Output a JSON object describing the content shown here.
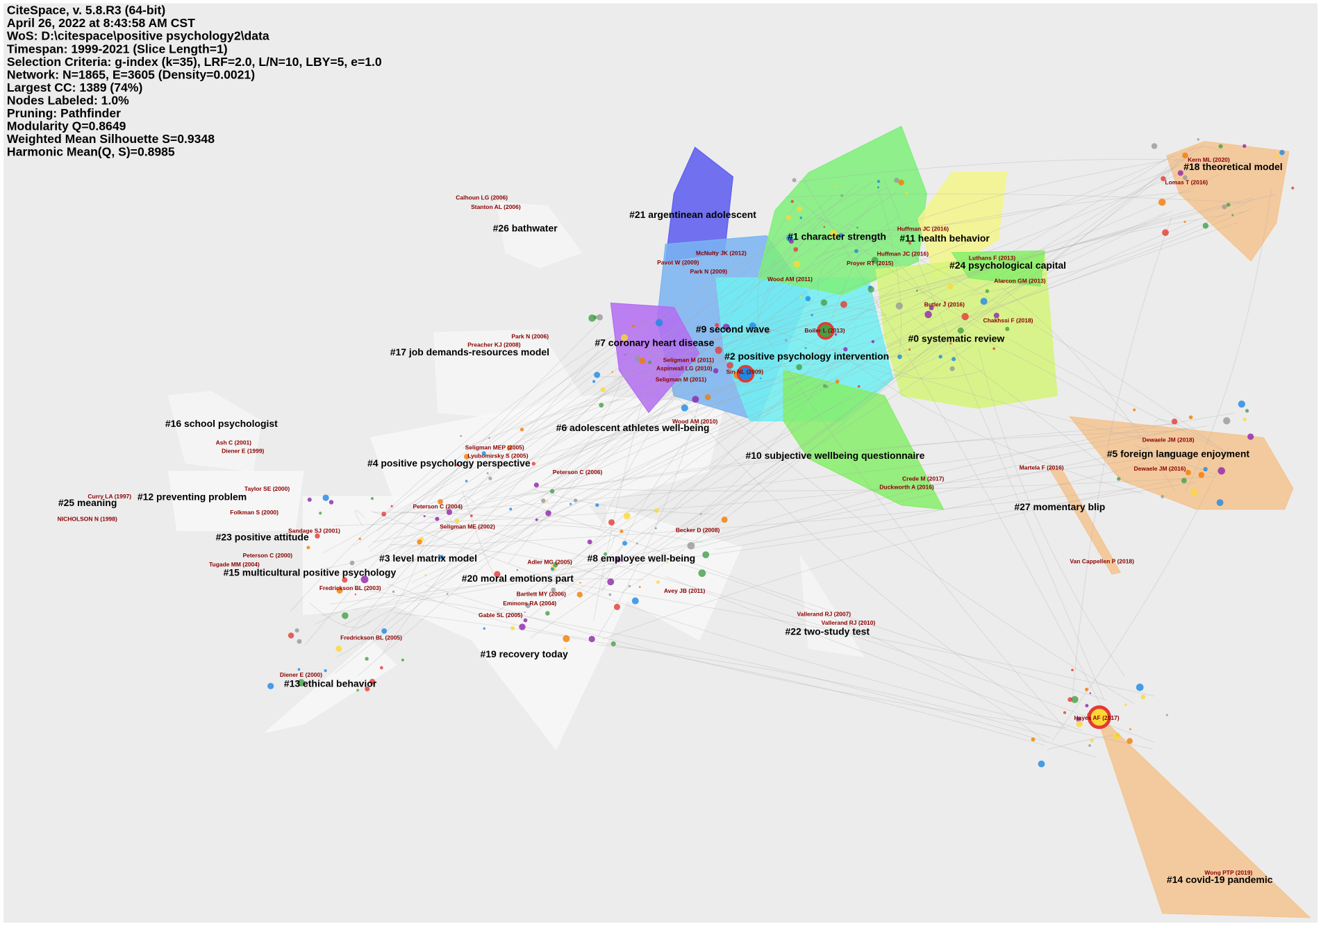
{
  "header": {
    "lines": [
      "CiteSpace, v. 5.8.R3 (64-bit)",
      "April 26, 2022 at 8:43:58 AM CST",
      "WoS: D:\\citespace\\positive psychology2\\data",
      "Timespan: 1999-2021 (Slice Length=1)",
      "Selection Criteria: g-index (k=35), LRF=2.0, L/N=10, LBY=5, e=1.0",
      "Network: N=1865, E=3605 (Density=0.0021)",
      "Largest CC: 1389 (74%)",
      "Nodes Labeled: 1.0%",
      "Pruning: Pathfinder",
      "Modularity Q=0.8649",
      "Weighted Mean Silhouette S=0.9348",
      "Harmonic Mean(Q, S)=0.8985"
    ]
  },
  "clusters": [
    "#0 systematic review",
    "#1 character strength",
    "#2 positive psychology intervention",
    "#3 level matrix model",
    "#4 positive psychology perspective",
    "#5 foreign language enjoyment",
    "#6 adolescent athletes well-being",
    "#7 coronary heart disease",
    "#8 employee well-being",
    "#9 second wave",
    "#10 subjective wellbeing questionnaire",
    "#11 health behavior",
    "#12 preventing problem",
    "#13 ethical behavior",
    "#14 covid-19 pandemic",
    "#15 multicultural positive psychology",
    "#16 school psychologist",
    "#17 job demands-resources model",
    "#18 theoretical model",
    "#19 recovery today",
    "#20 moral emotions part",
    "#21 argentinean adolescent",
    "#22 two-study test",
    "#23 positive attitude",
    "#24 psychological capital",
    "#25 meaning",
    "#26 bathwater",
    "#27 momentary blip"
  ],
  "node_labels": [
    "Calhoun LG (2006)",
    "Stanton AL (2006)",
    "Kern ML (2020)",
    "Lomas T (2016)",
    "Huffman JC (2016)",
    "Huffman JC (2016)",
    "McNulty JK (2012)",
    "Pavot W (2009)",
    "Proyer RT (2015)",
    "Luthans F (2013)",
    "Park N (2009)",
    "Wood AM (2011)",
    "Alarcon GM (2013)",
    "Butler J (2016)",
    "Chakhssi F (2018)",
    "Boiler L (2013)",
    "Park N (2006)",
    "Preacher KJ (2008)",
    "Seligman M (2011)",
    "Aspinwall LG (2010)",
    "Sin NL (2009)",
    "Seligman M (2011)",
    "Wood AM (2010)",
    "Ash C (2001)",
    "Diener E (1999)",
    "Seligman MEP (2005)",
    "Lyubomirsky S (2005)",
    "Dewaele JM (2018)",
    "Dewaele JM (2016)",
    "Peterson C (2006)",
    "Martela F (2016)",
    "Crede M (2017)",
    "Duckworth A (2016)",
    "Curry LA (1997)",
    "Taylor SE (2000)",
    "Folkman S (2000)",
    "NICHOLSON N (1998)",
    "Peterson C (2004)",
    "Seligman ME (2002)",
    "Sandage SJ (2001)",
    "Becker D (2008)",
    "Peterson C (2000)",
    "Tugade MM (2004)",
    "Adler MG (2005)",
    "Van Cappellen P (2018)",
    "Fredrickson BL (2003)",
    "Bartlett MY (2006)",
    "Avey JB (2011)",
    "Emmons RA (2004)",
    "Gable SL (2005)",
    "Vallerand RJ (2007)",
    "Vallerand RJ (2010)",
    "Fredrickson BL (2005)",
    "Diener E (2000)",
    "Hayes AF (2017)",
    "Wong PTP (2019)"
  ]
}
